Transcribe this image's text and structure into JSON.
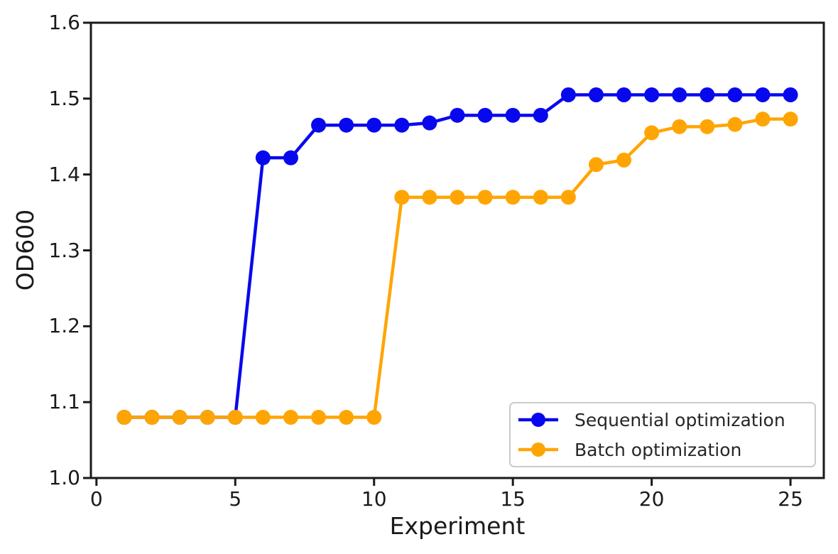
{
  "chart_data": {
    "type": "line",
    "title": "",
    "xlabel": "Experiment",
    "ylabel": "OD600",
    "x": [
      1,
      2,
      3,
      4,
      5,
      6,
      7,
      8,
      9,
      10,
      11,
      12,
      13,
      14,
      15,
      16,
      17,
      18,
      19,
      20,
      21,
      22,
      23,
      24,
      25
    ],
    "series": [
      {
        "name": "Sequential optimization",
        "color": "#0808ee",
        "values": [
          1.08,
          1.08,
          1.08,
          1.08,
          1.08,
          1.422,
          1.422,
          1.465,
          1.465,
          1.465,
          1.465,
          1.468,
          1.478,
          1.478,
          1.478,
          1.478,
          1.505,
          1.505,
          1.505,
          1.505,
          1.505,
          1.505,
          1.505,
          1.505,
          1.505
        ]
      },
      {
        "name": "Batch optimization",
        "color": "#ffa503",
        "values": [
          1.08,
          1.08,
          1.08,
          1.08,
          1.08,
          1.08,
          1.08,
          1.08,
          1.08,
          1.08,
          1.37,
          1.37,
          1.37,
          1.37,
          1.37,
          1.37,
          1.37,
          1.413,
          1.419,
          1.455,
          1.463,
          1.463,
          1.466,
          1.473,
          1.473
        ]
      }
    ],
    "x_ticks": [
      "0",
      "5",
      "10",
      "15",
      "20",
      "25"
    ],
    "y_ticks": [
      "1.0",
      "1.1",
      "1.2",
      "1.3",
      "1.4",
      "1.5",
      "1.6"
    ],
    "xlim": [
      -0.2,
      26.2
    ],
    "ylim": [
      1.0,
      1.6
    ],
    "grid": false,
    "legend_position": "lower right",
    "axis_color": "#1a1a1a"
  }
}
